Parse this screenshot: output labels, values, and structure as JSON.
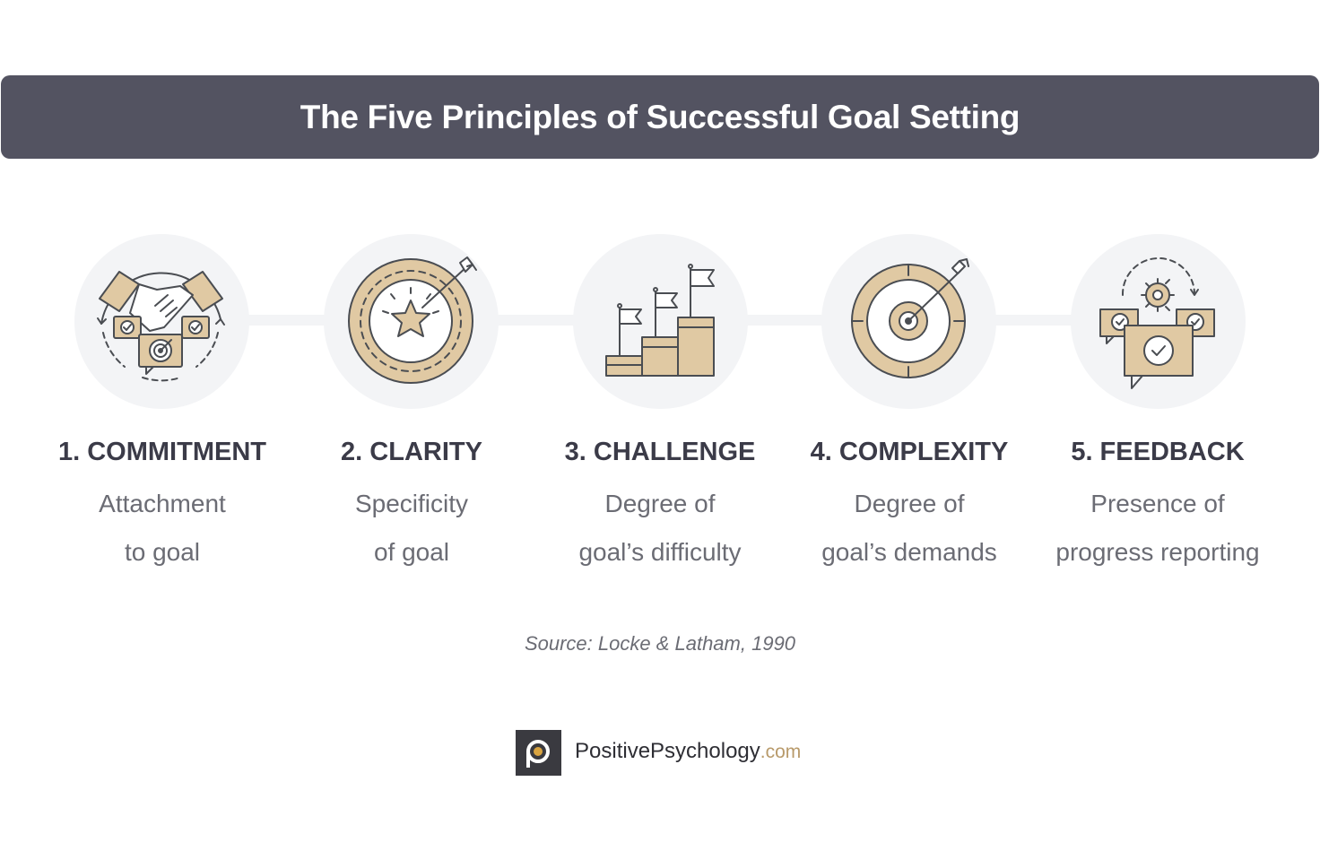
{
  "title": "The Five Principles of Successful Goal Setting",
  "principles": [
    {
      "title": "1. COMMITMENT",
      "line1": "Attachment",
      "line2": "to goal",
      "icon": "handshake-icon"
    },
    {
      "title": "2. CLARITY",
      "line1": "Specificity",
      "line2": "of goal",
      "icon": "star-target-icon"
    },
    {
      "title": "3. CHALLENGE",
      "line1": "Degree of",
      "line2": "goal’s difficulty",
      "icon": "podium-flags-icon"
    },
    {
      "title": "4. COMPLEXITY",
      "line1": "Degree of",
      "line2": "goal’s demands",
      "icon": "bullseye-icon"
    },
    {
      "title": "5. FEEDBACK",
      "line1": "Presence of",
      "line2": "progress reporting",
      "icon": "feedback-chat-icon"
    }
  ],
  "source": "Source: Locke & Latham, 1990",
  "logo": {
    "name": "PositivePsychology",
    "tld": ".com"
  },
  "colors": {
    "banner": "#535361",
    "accent": "#e0c9a3",
    "stroke": "#4a4d52",
    "circle": "#f3f4f6"
  }
}
